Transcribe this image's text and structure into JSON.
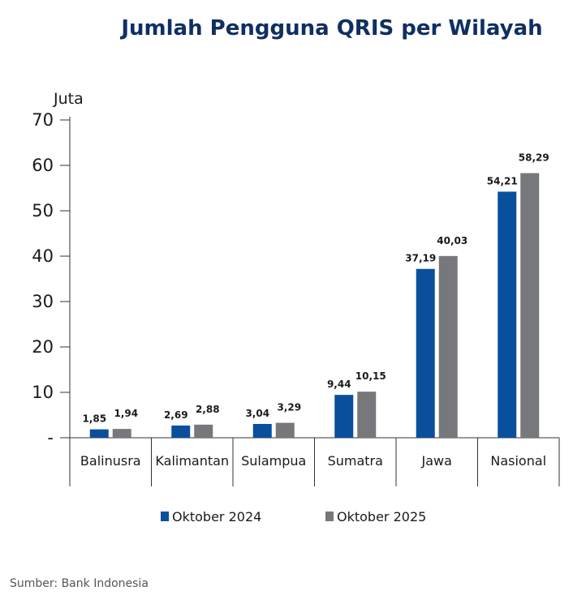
{
  "title": "Jumlah Pengguna QRIS per Wilayah",
  "source": "Sumber: Bank Indonesia",
  "chart_data": {
    "type": "bar",
    "title": "Jumlah Pengguna QRIS per Wilayah",
    "ylabel": "Juta",
    "xlabel": "",
    "ylim": [
      0,
      70
    ],
    "yticks": [
      0,
      10,
      20,
      30,
      40,
      50,
      60,
      70
    ],
    "ytick_labels": [
      "-",
      "10",
      "20",
      "30",
      "40",
      "50",
      "60",
      "70"
    ],
    "categories": [
      "Balinusra",
      "Kalimantan",
      "Sulampua",
      "Sumatra",
      "Jawa",
      "Nasional"
    ],
    "series": [
      {
        "name": "Oktober 2024",
        "color": "#0a4f9c",
        "values": [
          1.85,
          2.69,
          3.04,
          9.44,
          37.19,
          54.21
        ],
        "labels": [
          "1,85",
          "2,69",
          "3,04",
          "9,44",
          "37,19",
          "54,21"
        ]
      },
      {
        "name": "Oktober 2025",
        "color": "#76787b",
        "values": [
          1.94,
          2.88,
          3.29,
          10.15,
          40.03,
          58.29
        ],
        "labels": [
          "1,94",
          "2,88",
          "3,29",
          "10,15",
          "40,03",
          "58,29"
        ]
      }
    ],
    "legend": "bottom",
    "grid": false
  }
}
